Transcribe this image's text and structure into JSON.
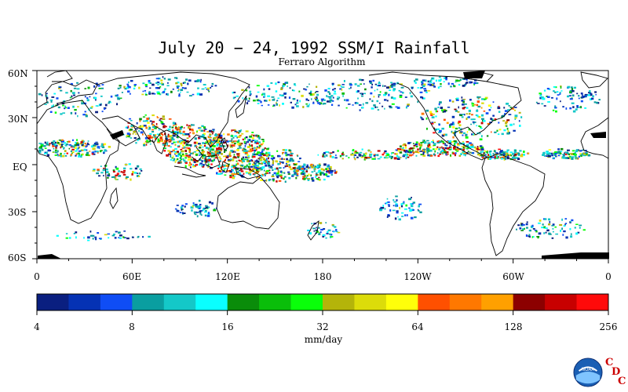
{
  "title": "July 20 − 24, 1992 SSM/I Rainfall",
  "subtitle": "Ferraro Algorithm",
  "map": {
    "lat_labels": [
      "60N",
      "30N",
      "EQ",
      "30S",
      "60S"
    ],
    "lon_labels": [
      "0",
      "60E",
      "120E",
      "180",
      "120W",
      "60W",
      "0"
    ],
    "lat_range": [
      -60,
      60
    ],
    "lon_range": [
      0,
      360
    ]
  },
  "colorbar": {
    "tick_labels": [
      "4",
      "8",
      "16",
      "32",
      "64",
      "128",
      "256"
    ],
    "units": "mm/day",
    "colors": [
      "#0a1f80",
      "#0532b4",
      "#0f4df5",
      "#0a9ea0",
      "#14c8c8",
      "#0affff",
      "#0a8c0a",
      "#0abe0a",
      "#0aff0a",
      "#b4b40a",
      "#dcdc0a",
      "#ffff0a",
      "#ff5000",
      "#ff7800",
      "#ffa000",
      "#8c0000",
      "#c80000",
      "#ff0a0a"
    ]
  },
  "logo": {
    "name": "noaa-logo",
    "text": "NOAA",
    "mark": [
      "C",
      "D",
      "C"
    ]
  }
}
